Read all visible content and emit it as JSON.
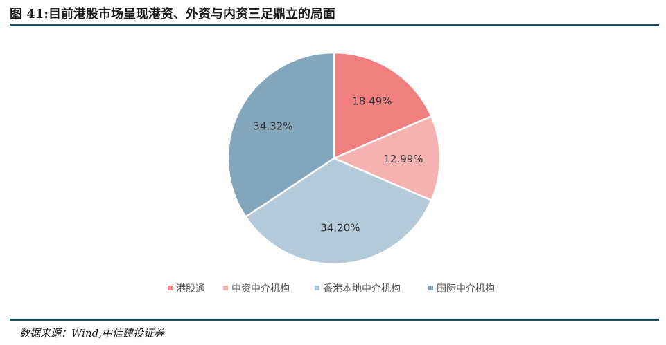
{
  "header": {
    "title": "图 41:目前港股市场呈现港资、外资与内资三足鼎立的局面"
  },
  "footer": {
    "source": "数据来源：Wind,中信建投证券"
  },
  "colors": {
    "accent_rule": "#1f4e5f"
  },
  "chart_data": {
    "type": "pie",
    "title": "",
    "slices": [
      {
        "label": "港股通",
        "value": 18.49,
        "display": "18.49%",
        "color": "#f08080"
      },
      {
        "label": "中资中介机构",
        "value": 12.99,
        "display": "12.99%",
        "color": "#f5b2b0"
      },
      {
        "label": "香港本地中介机构",
        "value": 34.2,
        "display": "34.20%",
        "color": "#b5cad8"
      },
      {
        "label": "国际中介机构",
        "value": 34.32,
        "display": "34.32%",
        "color": "#84a6bc"
      }
    ],
    "legend_position": "bottom",
    "start_angle": "12 o'clock",
    "direction": "clockwise"
  }
}
